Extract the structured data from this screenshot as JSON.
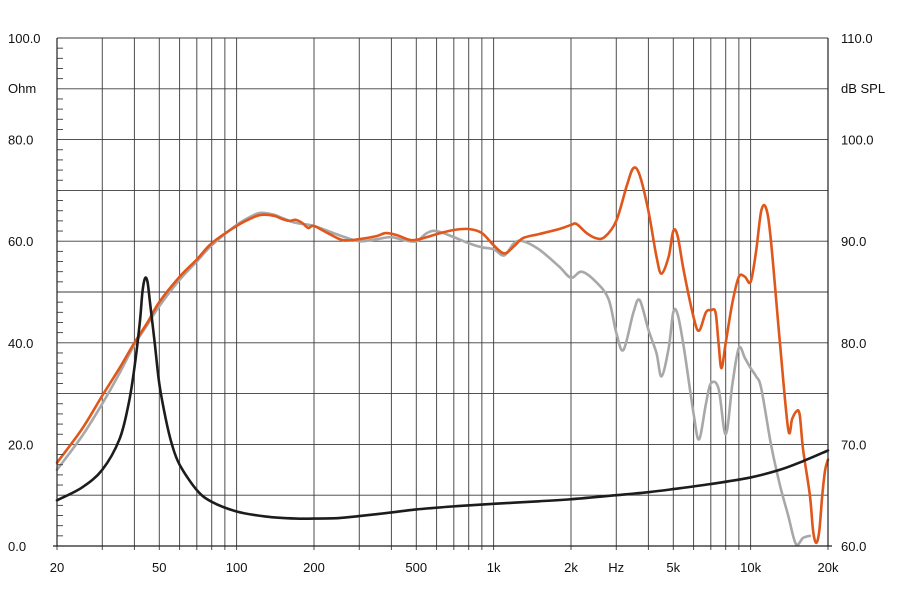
{
  "chart_data": {
    "type": "line",
    "x_axis": {
      "scale": "log",
      "range": [
        20,
        20000
      ],
      "tick_labels": [
        {
          "value": 20,
          "label": "20"
        },
        {
          "value": 50,
          "label": "50"
        },
        {
          "value": 100,
          "label": "100"
        },
        {
          "value": 200,
          "label": "200"
        },
        {
          "value": 500,
          "label": "500"
        },
        {
          "value": 1000,
          "label": "1k"
        },
        {
          "value": 2000,
          "label": "2k"
        },
        {
          "value": 5000,
          "label": "5k"
        },
        {
          "value": 10000,
          "label": "10k"
        },
        {
          "value": 20000,
          "label": "20k"
        }
      ],
      "unit_label": "Hz",
      "unit_label_value": 3000
    },
    "y_left": {
      "unit_label": "Ohm",
      "range": [
        0,
        100
      ],
      "tick_labels": [
        {
          "value": 0,
          "label": "0.0"
        },
        {
          "value": 20,
          "label": "20.0"
        },
        {
          "value": 40,
          "label": "40.0"
        },
        {
          "value": 60,
          "label": "60.0"
        },
        {
          "value": 80,
          "label": "80.0"
        },
        {
          "value": 100,
          "label": "100.0"
        }
      ]
    },
    "y_right": {
      "unit_label": "dB SPL",
      "range": [
        60,
        110
      ],
      "tick_labels": [
        {
          "value": 60,
          "label": "60.0"
        },
        {
          "value": 70,
          "label": "70.0"
        },
        {
          "value": 80,
          "label": "80.0"
        },
        {
          "value": 90,
          "label": "90.0"
        },
        {
          "value": 100,
          "label": "100.0"
        },
        {
          "value": 110,
          "label": "110.0"
        }
      ]
    },
    "grid": true,
    "series": [
      {
        "axis": "right",
        "color": "#e0571b",
        "points": [
          [
            20,
            68.2
          ],
          [
            25,
            71.5
          ],
          [
            30,
            74.8
          ],
          [
            35,
            77.5
          ],
          [
            40,
            80
          ],
          [
            45,
            82
          ],
          [
            50,
            84
          ],
          [
            60,
            86.5
          ],
          [
            70,
            88.2
          ],
          [
            80,
            89.8
          ],
          [
            100,
            91.5
          ],
          [
            115,
            92.3
          ],
          [
            125,
            92.6
          ],
          [
            140,
            92.5
          ],
          [
            150,
            92.2
          ],
          [
            160,
            92
          ],
          [
            170,
            92.1
          ],
          [
            180,
            91.8
          ],
          [
            190,
            91.3
          ],
          [
            200,
            91.5
          ],
          [
            230,
            90.7
          ],
          [
            260,
            90.1
          ],
          [
            300,
            90.2
          ],
          [
            350,
            90.5
          ],
          [
            380,
            90.8
          ],
          [
            420,
            90.6
          ],
          [
            480,
            90.1
          ],
          [
            550,
            90.4
          ],
          [
            600,
            90.7
          ],
          [
            700,
            91.1
          ],
          [
            800,
            91.2
          ],
          [
            900,
            90.8
          ],
          [
            1000,
            89.6
          ],
          [
            1100,
            88.8
          ],
          [
            1200,
            89.5
          ],
          [
            1300,
            90.3
          ],
          [
            1500,
            90.7
          ],
          [
            1800,
            91.2
          ],
          [
            2000,
            91.6
          ],
          [
            2100,
            91.7
          ],
          [
            2300,
            90.8
          ],
          [
            2500,
            90.3
          ],
          [
            2700,
            90.4
          ],
          [
            3000,
            92
          ],
          [
            3300,
            95.5
          ],
          [
            3500,
            97.2
          ],
          [
            3700,
            96.5
          ],
          [
            4000,
            93
          ],
          [
            4300,
            88.5
          ],
          [
            4500,
            86.8
          ],
          [
            4800,
            88.5
          ],
          [
            5000,
            91
          ],
          [
            5200,
            90.5
          ],
          [
            5500,
            87
          ],
          [
            6000,
            82.5
          ],
          [
            6300,
            81.2
          ],
          [
            6700,
            83
          ],
          [
            7000,
            83.2
          ],
          [
            7300,
            83
          ],
          [
            7500,
            80
          ],
          [
            7700,
            77.5
          ],
          [
            8000,
            80
          ],
          [
            8500,
            84
          ],
          [
            9000,
            86.5
          ],
          [
            9500,
            86.5
          ],
          [
            10000,
            86
          ],
          [
            10500,
            89
          ],
          [
            11000,
            93
          ],
          [
            11500,
            93.2
          ],
          [
            12000,
            90
          ],
          [
            13000,
            80
          ],
          [
            14000,
            71.5
          ],
          [
            14500,
            72.5
          ],
          [
            15000,
            73.2
          ],
          [
            15500,
            73
          ],
          [
            16000,
            69.5
          ],
          [
            17000,
            65
          ],
          [
            17500,
            61.5
          ],
          [
            18000,
            60.3
          ],
          [
            18500,
            61.5
          ],
          [
            19000,
            65
          ],
          [
            19500,
            67.5
          ],
          [
            20000,
            68.5
          ]
        ]
      },
      {
        "axis": "right",
        "color": "#a8a8a8",
        "points": [
          [
            20,
            67.5
          ],
          [
            25,
            70.8
          ],
          [
            30,
            74
          ],
          [
            35,
            77
          ],
          [
            40,
            79.8
          ],
          [
            45,
            81.8
          ],
          [
            50,
            83.6
          ],
          [
            60,
            86.2
          ],
          [
            70,
            88
          ],
          [
            80,
            89.6
          ],
          [
            100,
            91.6
          ],
          [
            115,
            92.5
          ],
          [
            125,
            92.8
          ],
          [
            140,
            92.6
          ],
          [
            150,
            92.3
          ],
          [
            170,
            91.8
          ],
          [
            200,
            91.5
          ],
          [
            250,
            90.6
          ],
          [
            300,
            90
          ],
          [
            350,
            90.2
          ],
          [
            400,
            90.4
          ],
          [
            450,
            90.1
          ],
          [
            500,
            90
          ],
          [
            550,
            90.8
          ],
          [
            600,
            91
          ],
          [
            700,
            90.4
          ],
          [
            800,
            89.8
          ],
          [
            900,
            89.4
          ],
          [
            1000,
            89.2
          ],
          [
            1100,
            88.6
          ],
          [
            1200,
            89.8
          ],
          [
            1300,
            90
          ],
          [
            1500,
            89.2
          ],
          [
            1800,
            87.5
          ],
          [
            2000,
            86.4
          ],
          [
            2200,
            87
          ],
          [
            2500,
            86
          ],
          [
            2800,
            84.3
          ],
          [
            3000,
            81
          ],
          [
            3200,
            79.3
          ],
          [
            3500,
            83
          ],
          [
            3700,
            84.2
          ],
          [
            4000,
            81.3
          ],
          [
            4300,
            79
          ],
          [
            4500,
            76.7
          ],
          [
            4800,
            79.5
          ],
          [
            5000,
            83
          ],
          [
            5200,
            82.8
          ],
          [
            5500,
            79.5
          ],
          [
            6000,
            73
          ],
          [
            6300,
            70.5
          ],
          [
            6700,
            74
          ],
          [
            7000,
            76
          ],
          [
            7500,
            75.5
          ],
          [
            8000,
            71
          ],
          [
            8500,
            76
          ],
          [
            9000,
            79.5
          ],
          [
            9500,
            78.5
          ],
          [
            10000,
            77.5
          ],
          [
            10500,
            76.7
          ],
          [
            11000,
            75.5
          ],
          [
            12000,
            70
          ],
          [
            13000,
            66
          ],
          [
            14000,
            63
          ],
          [
            15000,
            60.2
          ],
          [
            16000,
            60.8
          ],
          [
            17000,
            61
          ]
        ]
      },
      {
        "axis": "left",
        "color": "#1c1c1c",
        "points": [
          [
            20,
            9
          ],
          [
            25,
            11.5
          ],
          [
            30,
            15
          ],
          [
            35,
            21
          ],
          [
            38,
            28
          ],
          [
            40,
            35
          ],
          [
            42,
            44
          ],
          [
            43,
            50
          ],
          [
            44,
            52.7
          ],
          [
            45,
            52
          ],
          [
            46,
            48
          ],
          [
            48,
            40
          ],
          [
            50,
            32
          ],
          [
            53,
            25
          ],
          [
            56,
            20
          ],
          [
            60,
            16
          ],
          [
            70,
            11
          ],
          [
            80,
            8.7
          ],
          [
            100,
            6.8
          ],
          [
            130,
            5.8
          ],
          [
            170,
            5.4
          ],
          [
            200,
            5.4
          ],
          [
            250,
            5.5
          ],
          [
            300,
            5.9
          ],
          [
            400,
            6.6
          ],
          [
            500,
            7.2
          ],
          [
            700,
            7.8
          ],
          [
            1000,
            8.3
          ],
          [
            1500,
            8.8
          ],
          [
            2000,
            9.2
          ],
          [
            3000,
            10
          ],
          [
            4000,
            10.6
          ],
          [
            5000,
            11.2
          ],
          [
            7000,
            12.2
          ],
          [
            10000,
            13.5
          ],
          [
            13000,
            15
          ],
          [
            16000,
            16.7
          ],
          [
            20000,
            18.8
          ]
        ]
      }
    ]
  }
}
